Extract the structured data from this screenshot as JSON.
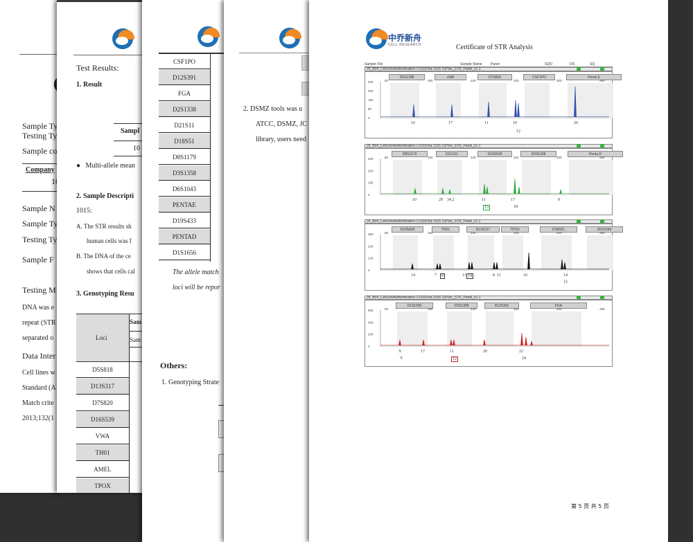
{
  "page1": {
    "lines": [
      "Sample Ty",
      "Testing Ty",
      "Sample co",
      "Company",
      "10",
      "Sample N",
      "Sample Ty",
      "Testing Ty",
      "Sample F",
      "Testing M",
      "DNA was e",
      "repeat (STR",
      "separated o",
      "Data Inter",
      "Cell lines w",
      "Standard (A",
      "Match crite",
      "2013;132(1"
    ]
  },
  "page2": {
    "test_results": "Test Results:",
    "result_heading": "1.   Result",
    "sample_col": "Sampl",
    "sample_val": "10",
    "bullet": "Multi-allele mean",
    "sample_desc_heading": "2.   Sample Descripti",
    "sample_id": "1015:",
    "item_a1": "A. The STR results sh",
    "item_a2": "human cells was f",
    "item_b1": "B. The DNA of the ce",
    "item_b2": "shows that cells cal",
    "genotyping_heading": "3.   Genotyping Resu",
    "loci_header": "Loci",
    "sam_header1": "Sam",
    "sam_header2": "Sam",
    "loci": [
      "D5S818",
      "D13S317",
      "D7S820",
      "D16S539",
      "VWA",
      "TH01",
      "AMEL",
      "TPOX"
    ]
  },
  "page3": {
    "loci": [
      "CSF1PO",
      "D12S391",
      "FGA",
      "D2S1338",
      "D21S11",
      "D18S51",
      "D8S1179",
      "D3S1358",
      "D6S1043",
      "PENTAE",
      "D19S433",
      "PENTAD",
      "D1S1656"
    ],
    "note1": "The allele match",
    "note2": "loci will be repor",
    "others": "Others:",
    "genotyping_strategy": "1.   Genotyping Strate"
  },
  "page4": {
    "item2_1": "2.   DSMZ tools was u",
    "item2_2": "ATCC, DSMZ, JC",
    "item2_3": "library, users need"
  },
  "page5": {
    "logo_cn": "中乔新舟",
    "logo_en": "CELL RESEARCH",
    "title": "Certificate of STR Analysis",
    "col_headers": [
      "Sample File",
      "Sample Name",
      "Panel",
      "SQO",
      "OS",
      "SQ"
    ],
    "footer": "第 5 页 共 5 页",
    "colors": {
      "blue": "#2f4fb0",
      "green": "#2fa83a",
      "black": "#111111",
      "red": "#d02020",
      "flag": "#3bb33b"
    },
    "panels": [
      {
        "header": "26_B04_CellLineAuthentication-1-0118.fsa     1015     21Plex_STR_Panel_v1.1",
        "markers": [
          "D5S1288",
          "vWA",
          "D7S820",
          "CSF1PO",
          "Penta E"
        ],
        "yticks": [
          "400",
          "300",
          "160",
          "80",
          "0"
        ],
        "xticks": [
          "80",
          "160",
          "240",
          "320",
          "400",
          "480"
        ],
        "alleles": [
          {
            "label": "16"
          },
          {
            "label": "17"
          },
          {
            "label": "11"
          },
          {
            "label": "10"
          },
          {
            "label": "12"
          },
          {
            "label": "20"
          }
        ]
      },
      {
        "header": "26_B04_CellLineAuthentication-1-0118.fsa     1015     21Plex_STR_Panel_v1.1",
        "markers": [
          "D8S1179",
          "D21S11",
          "D16S539",
          "D2S1338",
          "Penta D"
        ],
        "yticks": [
          "300",
          "200",
          "100",
          "0"
        ],
        "xticks": [
          "80",
          "160",
          "240",
          "320",
          "400",
          "480"
        ],
        "alleles": [
          {
            "label": "10"
          },
          {
            "label": "29"
          },
          {
            "label": "34.2"
          },
          {
            "label": "11"
          },
          {
            "label": "13"
          },
          {
            "label": "17"
          },
          {
            "label": "18"
          },
          {
            "label": "9"
          }
        ]
      },
      {
        "header": "26_B04_CellLineAuthentication-1-0118.fsa     1015     21Plex_STR_Panel_v1.1",
        "markers": [
          "D19S433",
          "TH01",
          "D13S317",
          "TPOX",
          "D18S51",
          "D6S1043"
        ],
        "yticks": [
          "360",
          "240",
          "120",
          "0"
        ],
        "xticks": [
          "80",
          "160",
          "240",
          "320",
          "400",
          "480"
        ],
        "alleles": [
          {
            "label": "14"
          },
          {
            "label": "7"
          },
          {
            "label": "9"
          },
          {
            "label": "11"
          },
          {
            "label": "14"
          },
          {
            "label": "8"
          },
          {
            "label": "11"
          },
          {
            "label": "16"
          },
          {
            "label": "14"
          },
          {
            "label": "15"
          }
        ]
      },
      {
        "header": "26_B04_CellLineAuthentication-1-0118.fsa     1015     21Plex_STR_Panel_v1.1",
        "markers": [
          "D1S1656",
          "D3S1358",
          "D12S391",
          "FGA"
        ],
        "yticks": [
          "600",
          "400",
          "200",
          "0"
        ],
        "xticks": [
          "80",
          "160",
          "240",
          "320",
          "400",
          "480"
        ],
        "alleles": [
          {
            "label": "X"
          },
          {
            "label": "Y"
          },
          {
            "label": "17"
          },
          {
            "label": "11"
          },
          {
            "label": "12"
          },
          {
            "label": "20"
          },
          {
            "label": "22"
          },
          {
            "label": "24"
          }
        ]
      }
    ]
  }
}
